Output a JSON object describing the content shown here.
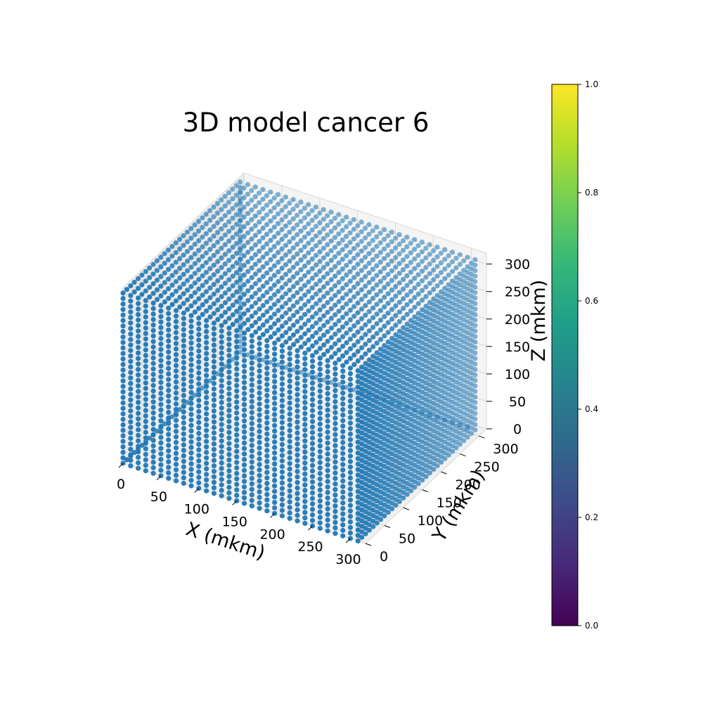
{
  "chart_data": {
    "type": "scatter3d",
    "title": "3D model cancer 6",
    "xlabel": "X (mkm)",
    "ylabel": "Y (mkm)",
    "zlabel": "Z (mkm)",
    "xlim": [
      0,
      320
    ],
    "ylim": [
      0,
      320
    ],
    "zlim": [
      0,
      320
    ],
    "xticks": [
      0,
      50,
      100,
      150,
      200,
      250,
      300
    ],
    "yticks": [
      0,
      50,
      100,
      150,
      200,
      250,
      300
    ],
    "zticks": [
      0,
      50,
      100,
      150,
      200,
      250,
      300
    ],
    "grid_step": 10,
    "grid_count": 32,
    "point_color": "#1f77b4",
    "description": "Dense cubic grid of points spanning 0 to 310 on each axis",
    "colorbar": {
      "min": 0.0,
      "max": 1.0,
      "ticks": [
        "0.0",
        "0.2",
        "0.4",
        "0.6",
        "0.8",
        "1.0"
      ],
      "colormap": [
        "#440154",
        "#482878",
        "#3e4989",
        "#31688e",
        "#26828e",
        "#1f9e89",
        "#35b779",
        "#6ece58",
        "#b5de2b",
        "#fde725"
      ]
    }
  }
}
